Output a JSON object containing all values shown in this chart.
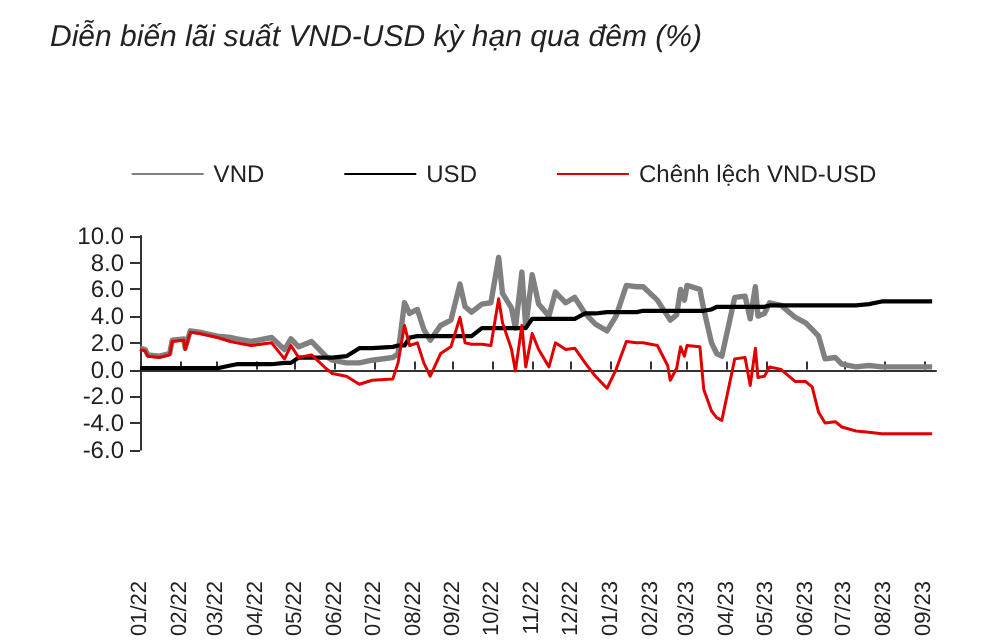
{
  "chart_data": {
    "type": "line",
    "title": "Diễn biến lãi suất VND-USD kỳ hạn qua đêm (%)",
    "legend": "top",
    "marker": "none",
    "line_style": "solid",
    "x": [
      "2022-01-01",
      "2022-01-05",
      "2022-01-07",
      "2022-01-16",
      "2022-01-24",
      "2022-01-26",
      "2022-02-04",
      "2022-02-05",
      "2022-02-09",
      "2022-02-16",
      "2022-03-02",
      "2022-03-12",
      "2022-03-17",
      "2022-03-28",
      "2022-04-13",
      "2022-04-23",
      "2022-04-28",
      "2022-05-04",
      "2022-05-14",
      "2022-05-25",
      "2022-05-30",
      "2022-06-10",
      "2022-06-20",
      "2022-06-30",
      "2022-07-16",
      "2022-07-20",
      "2022-07-25",
      "2022-07-29",
      "2022-08-04",
      "2022-08-09",
      "2022-08-14",
      "2022-08-22",
      "2022-08-30",
      "2022-09-06",
      "2022-09-10",
      "2022-09-15",
      "2022-09-23",
      "2022-09-30",
      "2022-10-06",
      "2022-10-09",
      "2022-10-16",
      "2022-10-19",
      "2022-10-24",
      "2022-10-27",
      "2022-11-01",
      "2022-11-06",
      "2022-11-14",
      "2022-11-19",
      "2022-11-27",
      "2022-12-04",
      "2022-12-12",
      "2022-12-20",
      "2022-12-29",
      "2023-01-05",
      "2023-01-13",
      "2023-01-21",
      "2023-01-26",
      "2023-02-06",
      "2023-02-14",
      "2023-02-16",
      "2023-02-21",
      "2023-02-24",
      "2023-02-27",
      "2023-03-01",
      "2023-03-11",
      "2023-03-14",
      "2023-03-20",
      "2023-03-24",
      "2023-03-28",
      "2023-04-02",
      "2023-04-07",
      "2023-04-15",
      "2023-04-19",
      "2023-04-23",
      "2023-04-25",
      "2023-04-30",
      "2023-05-04",
      "2023-05-13",
      "2023-05-24",
      "2023-06-01",
      "2023-06-06",
      "2023-06-11",
      "2023-06-16",
      "2023-06-24",
      "2023-06-29",
      "2023-07-10",
      "2023-07-20",
      "2023-07-30",
      "2023-08-21",
      "2023-09-07"
    ],
    "series": [
      {
        "name": "VND",
        "color": "#808080",
        "values": [
          1.6,
          1.5,
          1.1,
          1.0,
          1.2,
          2.2,
          2.3,
          1.6,
          2.9,
          2.8,
          2.5,
          2.4,
          2.3,
          2.1,
          2.4,
          1.5,
          2.3,
          1.7,
          2.1,
          1.0,
          0.7,
          0.5,
          0.5,
          0.7,
          0.9,
          1.2,
          5.0,
          4.2,
          4.5,
          3.0,
          2.2,
          3.3,
          3.7,
          6.4,
          4.7,
          4.3,
          4.9,
          5.0,
          8.4,
          5.7,
          4.6,
          3.1,
          7.3,
          3.2,
          7.1,
          4.9,
          4.0,
          5.8,
          5.0,
          5.4,
          4.2,
          3.4,
          2.9,
          4.0,
          6.3,
          6.2,
          6.2,
          5.2,
          4.0,
          3.7,
          4.1,
          6.0,
          5.2,
          6.3,
          6.0,
          4.5,
          2.0,
          1.2,
          1.0,
          3.2,
          5.4,
          5.5,
          3.8,
          6.2,
          4.0,
          4.2,
          5.0,
          4.8,
          3.9,
          3.5,
          3.0,
          2.5,
          0.8,
          0.9,
          0.4,
          0.2,
          0.3,
          0.2,
          0.2,
          0.2
        ]
      },
      {
        "name": "USD",
        "color": "#000000",
        "values": [
          0.1,
          0.1,
          0.1,
          0.1,
          0.1,
          0.1,
          0.1,
          0.1,
          0.1,
          0.1,
          0.1,
          0.3,
          0.4,
          0.4,
          0.4,
          0.5,
          0.5,
          0.9,
          0.9,
          0.9,
          0.9,
          1.0,
          1.6,
          1.6,
          1.7,
          1.8,
          1.8,
          2.4,
          2.5,
          2.5,
          2.5,
          2.5,
          2.5,
          2.5,
          2.5,
          2.5,
          3.1,
          3.1,
          3.1,
          3.1,
          3.1,
          3.1,
          3.1,
          3.1,
          3.8,
          3.8,
          3.8,
          3.8,
          3.8,
          3.8,
          4.2,
          4.2,
          4.3,
          4.3,
          4.3,
          4.3,
          4.4,
          4.4,
          4.4,
          4.4,
          4.4,
          4.4,
          4.4,
          4.4,
          4.4,
          4.4,
          4.5,
          4.7,
          4.7,
          4.7,
          4.7,
          4.7,
          4.7,
          4.7,
          4.7,
          4.7,
          4.8,
          4.8,
          4.8,
          4.8,
          4.8,
          4.8,
          4.8,
          4.8,
          4.8,
          4.8,
          4.9,
          5.1,
          5.1,
          5.1
        ]
      },
      {
        "name": "Chênh lệch VND-USD",
        "color": "#e00000",
        "values": [
          1.5,
          1.4,
          1.0,
          0.9,
          1.1,
          2.1,
          2.2,
          1.5,
          2.8,
          2.7,
          2.4,
          2.1,
          2.0,
          1.8,
          2.0,
          0.8,
          1.8,
          0.9,
          1.1,
          0.1,
          -0.3,
          -0.5,
          -1.1,
          -0.8,
          -0.7,
          0.5,
          3.3,
          1.8,
          2.0,
          0.5,
          -0.5,
          1.2,
          1.7,
          3.9,
          2.0,
          1.9,
          1.9,
          1.8,
          5.3,
          3.5,
          1.5,
          -0.1,
          3.3,
          0.2,
          2.7,
          1.5,
          0.2,
          2.0,
          1.5,
          1.6,
          0.5,
          -0.5,
          -1.4,
          0.0,
          2.1,
          2.0,
          2.0,
          1.8,
          0.3,
          -0.8,
          0.1,
          1.7,
          1.0,
          1.8,
          1.7,
          -1.5,
          -3.1,
          -3.6,
          -3.8,
          -1.5,
          0.8,
          0.9,
          -1.2,
          1.6,
          -0.6,
          -0.5,
          0.2,
          0.0,
          -0.9,
          -0.9,
          -1.3,
          -3.2,
          -4.0,
          -3.9,
          -4.3,
          -4.6,
          -4.7,
          -4.8,
          -4.8,
          -4.8
        ]
      }
    ],
    "xlim": [
      "2022-01-01",
      "2023-09-10"
    ],
    "xticks": [
      {
        "value": "2022-01-01",
        "label": "01/22"
      },
      {
        "value": "2022-02-01",
        "label": "02/22"
      },
      {
        "value": "2022-03-01",
        "label": "03/22"
      },
      {
        "value": "2022-04-01",
        "label": "04/22"
      },
      {
        "value": "2022-05-01",
        "label": "05/22"
      },
      {
        "value": "2022-06-01",
        "label": "06/22"
      },
      {
        "value": "2022-07-01",
        "label": "07/22"
      },
      {
        "value": "2022-08-01",
        "label": "08/22"
      },
      {
        "value": "2022-09-01",
        "label": "09/22"
      },
      {
        "value": "2022-10-01",
        "label": "10/22"
      },
      {
        "value": "2022-11-01",
        "label": "11/22"
      },
      {
        "value": "2022-12-01",
        "label": "12/22"
      },
      {
        "value": "2023-01-01",
        "label": "01/23"
      },
      {
        "value": "2023-02-01",
        "label": "02/23"
      },
      {
        "value": "2023-03-01",
        "label": "03/23"
      },
      {
        "value": "2023-04-01",
        "label": "04/23"
      },
      {
        "value": "2023-05-01",
        "label": "05/23"
      },
      {
        "value": "2023-06-01",
        "label": "06/23"
      },
      {
        "value": "2023-07-01",
        "label": "07/23"
      },
      {
        "value": "2023-08-01",
        "label": "08/23"
      },
      {
        "value": "2023-09-01",
        "label": "09/23"
      }
    ],
    "ylim": [
      -6,
      10
    ],
    "yticks": [
      {
        "value": -6,
        "label": "-6.0"
      },
      {
        "value": -4,
        "label": "-4.0"
      },
      {
        "value": -2,
        "label": "-2.0"
      },
      {
        "value": 0,
        "label": "0.0"
      },
      {
        "value": 2,
        "label": "2.0"
      },
      {
        "value": 4,
        "label": "4.0"
      },
      {
        "value": 6,
        "label": "6.0"
      },
      {
        "value": 8,
        "label": "8.0"
      },
      {
        "value": 10,
        "label": "10.0"
      }
    ]
  }
}
